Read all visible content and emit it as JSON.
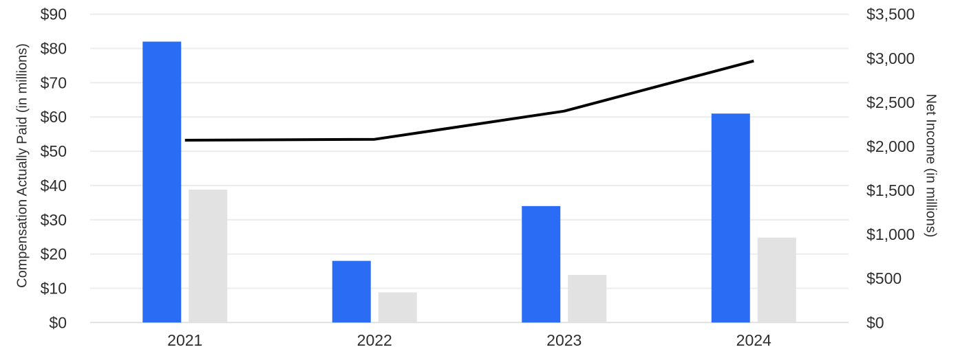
{
  "chart_data": {
    "type": "combo",
    "categories": [
      "2021",
      "2022",
      "2023",
      "2024"
    ],
    "series": [
      {
        "name": "Compensation Actually Paid (blue bar)",
        "type": "bar",
        "axis": "left",
        "color": "#2b6cf5",
        "values": [
          82,
          18,
          34,
          61
        ]
      },
      {
        "name": "Compensation Actually Paid (gray bar)",
        "type": "bar",
        "axis": "left",
        "color": "#e2e2e2",
        "values": [
          38.8,
          8.8,
          13.9,
          24.8
        ]
      },
      {
        "name": "Net Income (line)",
        "type": "line",
        "axis": "right",
        "color": "#000000",
        "values": [
          2070,
          2080,
          2400,
          2970
        ]
      }
    ],
    "left_axis": {
      "title": "Compensation Actually Paid (in millions)",
      "min": 0,
      "max": 90,
      "ticks": [
        {
          "label": "$0",
          "value": 0
        },
        {
          "label": "$10",
          "value": 10
        },
        {
          "label": "$20",
          "value": 20
        },
        {
          "label": "$30",
          "value": 30
        },
        {
          "label": "$40",
          "value": 40
        },
        {
          "label": "$50",
          "value": 50
        },
        {
          "label": "$60",
          "value": 60
        },
        {
          "label": "$70",
          "value": 70
        },
        {
          "label": "$80",
          "value": 80
        },
        {
          "label": "$90",
          "value": 90
        }
      ]
    },
    "right_axis": {
      "title": "Net Income (in millions)",
      "min": 0,
      "max": 3500,
      "ticks": [
        {
          "label": "$0",
          "value": 0
        },
        {
          "label": "$500",
          "value": 500
        },
        {
          "label": "$1,000",
          "value": 1000
        },
        {
          "label": "$1,500",
          "value": 1500
        },
        {
          "label": "$2,000",
          "value": 2000
        },
        {
          "label": "$2,500",
          "value": 2500
        },
        {
          "label": "$3,000",
          "value": 3000
        },
        {
          "label": "$3,500",
          "value": 3500
        }
      ]
    },
    "grid": true,
    "legend_position": "none"
  },
  "colors": {
    "background": "#ffffff",
    "gridline": "#ececec",
    "baseline": "#e0e0e0",
    "bar_blue": "#2b6cf5",
    "bar_gray": "#e2e2e2",
    "line_black": "#000000",
    "text": "#2e2e2e"
  }
}
